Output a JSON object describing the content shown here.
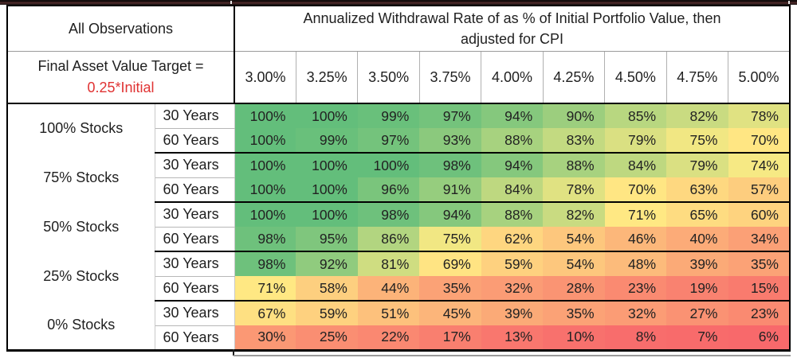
{
  "page": {
    "corner": {
      "observations_label": "All Observations",
      "target_label": "Final Asset Value Target =",
      "target_value": "0.25*Initial"
    },
    "title_line1": "Annualized Withdrawal Rate of as % of Initial Portfolio Value, then",
    "title_line2": "adjusted for CPI"
  },
  "colors": {
    "target_value_red": "#e03333",
    "scale_min_red": "#F8696B",
    "scale_mid_yellow": "#FFEB84",
    "scale_max_green": "#63BE7B"
  },
  "chart_data": {
    "type": "heatmap",
    "title": "Annualized Withdrawal Rate of as % of Initial Portfolio Value, then adjusted for CPI",
    "corner_note": "All Observations | Final Asset Value Target = 0.25*Initial",
    "value_suffix": "%",
    "columns": [
      "3.00%",
      "3.25%",
      "3.50%",
      "3.75%",
      "4.00%",
      "4.25%",
      "4.50%",
      "4.75%",
      "5.00%"
    ],
    "row_groups": [
      {
        "label": "100% Stocks",
        "rows": [
          {
            "label": "30 Years",
            "values": [
              100,
              100,
              99,
              97,
              94,
              90,
              85,
              82,
              78
            ]
          },
          {
            "label": "60 Years",
            "values": [
              100,
              99,
              97,
              93,
              88,
              83,
              79,
              75,
              70
            ]
          }
        ]
      },
      {
        "label": "75% Stocks",
        "rows": [
          {
            "label": "30 Years",
            "values": [
              100,
              100,
              100,
              98,
              94,
              88,
              84,
              79,
              74
            ]
          },
          {
            "label": "60 Years",
            "values": [
              100,
              100,
              96,
              91,
              84,
              78,
              70,
              63,
              57
            ]
          }
        ]
      },
      {
        "label": "50% Stocks",
        "rows": [
          {
            "label": "30 Years",
            "values": [
              100,
              100,
              98,
              94,
              88,
              82,
              71,
              65,
              60
            ]
          },
          {
            "label": "60 Years",
            "values": [
              98,
              95,
              86,
              75,
              62,
              54,
              46,
              40,
              34
            ]
          }
        ]
      },
      {
        "label": "25% Stocks",
        "rows": [
          {
            "label": "30 Years",
            "values": [
              98,
              92,
              81,
              69,
              59,
              54,
              48,
              39,
              35
            ]
          },
          {
            "label": "60 Years",
            "values": [
              71,
              58,
              44,
              35,
              32,
              28,
              23,
              19,
              15
            ]
          }
        ]
      },
      {
        "label": "0% Stocks",
        "rows": [
          {
            "label": "30 Years",
            "values": [
              67,
              59,
              51,
              45,
              39,
              35,
              32,
              27,
              23
            ]
          },
          {
            "label": "60 Years",
            "values": [
              30,
              25,
              22,
              17,
              13,
              10,
              8,
              7,
              6
            ]
          }
        ]
      }
    ],
    "color_scale": {
      "min_value": 6,
      "mid_value": 72.5,
      "max_value": 100,
      "min_color": "#F8696B",
      "mid_color": "#FFEB84",
      "max_color": "#63BE7B"
    },
    "layout": {
      "grid": true,
      "legend": "none",
      "values_shown_in_cells": true
    }
  }
}
